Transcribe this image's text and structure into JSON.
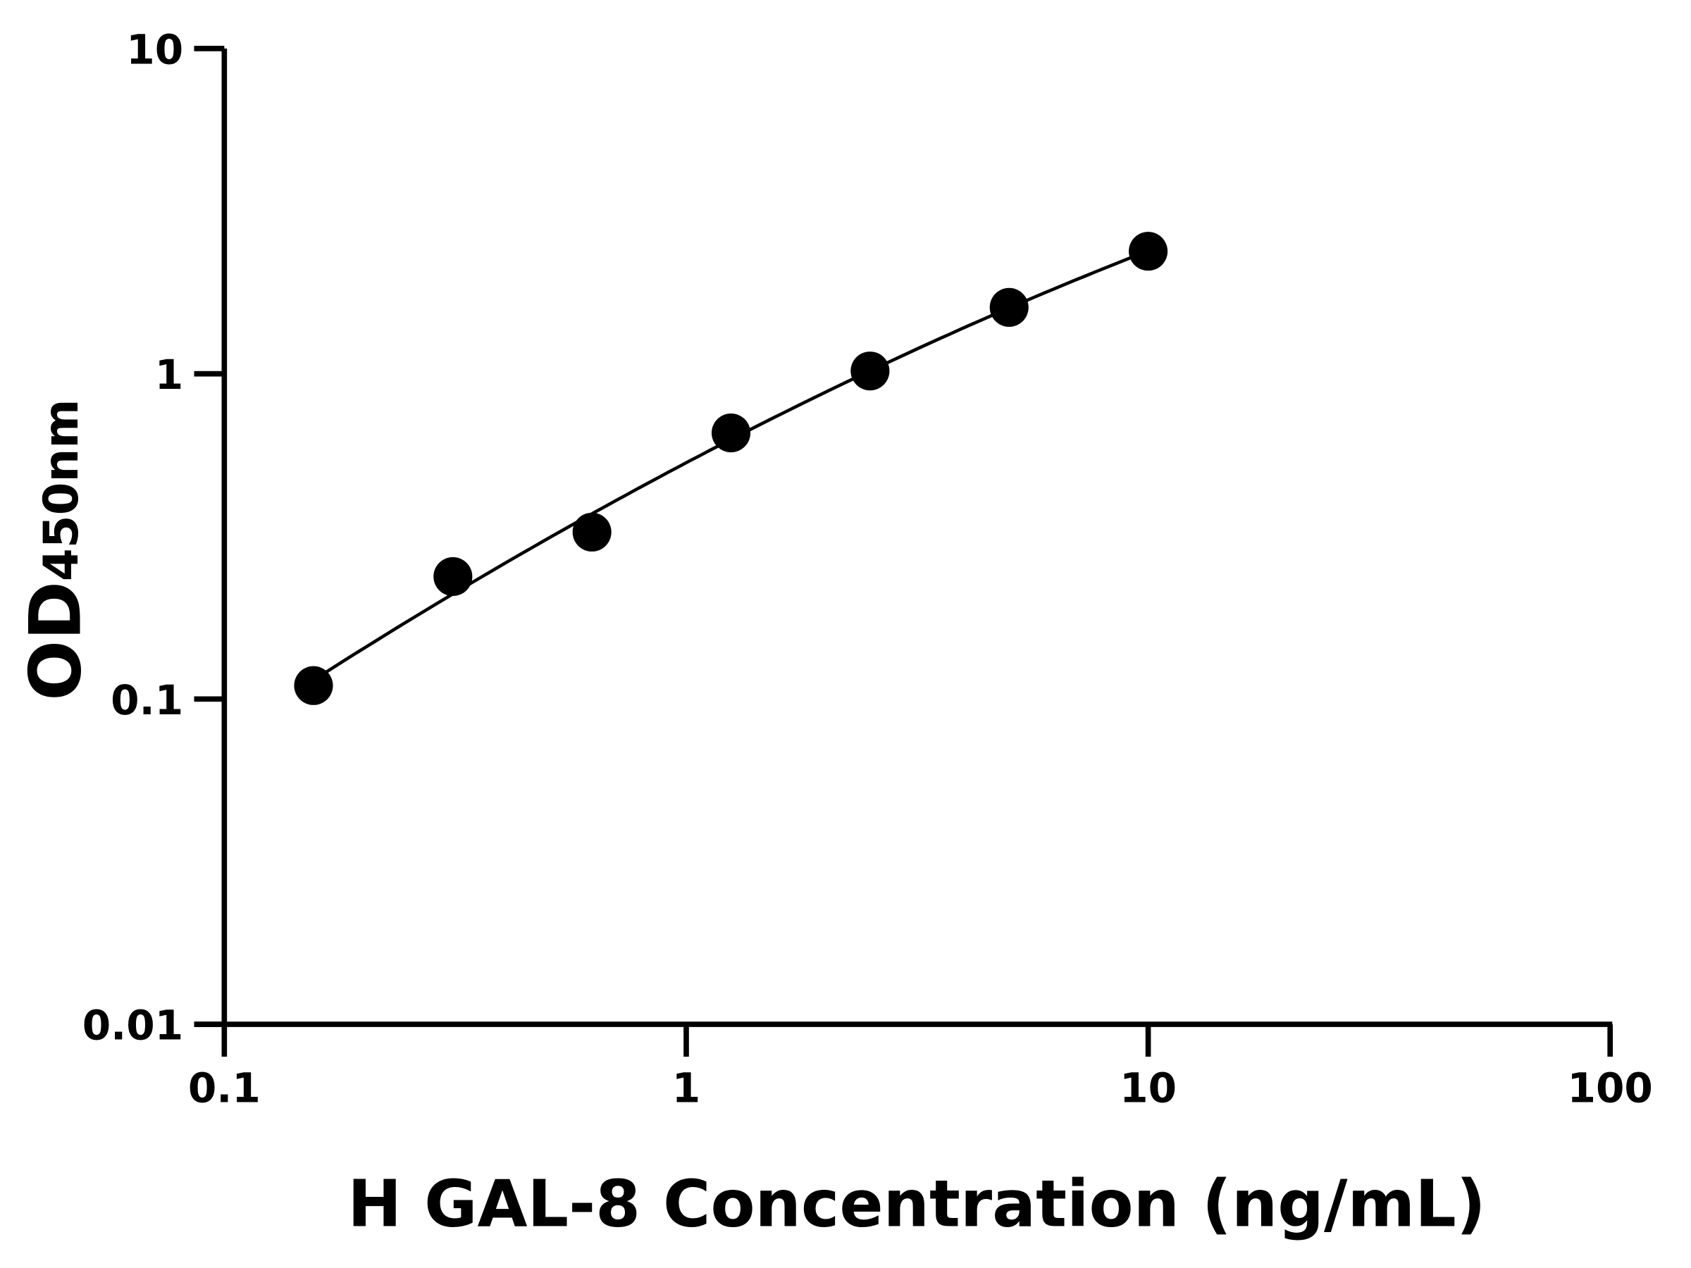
{
  "chart_data": {
    "type": "scatter",
    "title": "",
    "xlabel": "H GAL-8 Concentration (ng/mL)",
    "ylabel": "OD",
    "ylabel_subscript": "450nm",
    "x_scale": "log",
    "y_scale": "log",
    "xlim": [
      0.1,
      100
    ],
    "ylim": [
      0.01,
      10
    ],
    "x_ticks": [
      "0.1",
      "1",
      "10",
      "100"
    ],
    "y_ticks": [
      "0.01",
      "0.1",
      "1",
      "10"
    ],
    "grid": false,
    "legend": "none",
    "fit_curve": true,
    "marker_color": "#000000",
    "series": [
      {
        "x": [
          0.156,
          0.3125,
          0.625,
          1.25,
          2.5,
          5,
          10
        ],
        "y": [
          0.11,
          0.238,
          0.326,
          0.658,
          1.02,
          1.6,
          2.38
        ]
      }
    ]
  }
}
